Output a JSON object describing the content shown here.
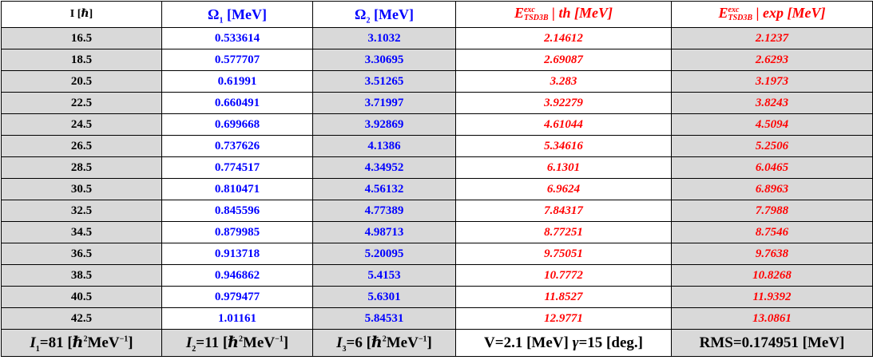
{
  "header": {
    "spin": "I [ℏ]",
    "omega1": {
      "symbol": "Ω",
      "sub": "1",
      "unit": " [MeV]"
    },
    "omega2": {
      "symbol": "Ω",
      "sub": "2",
      "unit": " [MeV]"
    },
    "eth": {
      "symbol": "E",
      "sup": "exc",
      "sub": "TSD3B",
      "rest": " | th [MeV]"
    },
    "eexp": {
      "symbol": "E",
      "sup": "exc",
      "sub": "TSD3B",
      "rest": " | exp [MeV]"
    }
  },
  "rows": [
    {
      "spin": "16.5",
      "omega1": "0.533614",
      "omega2": "3.1032",
      "eth": "2.14612",
      "eexp": "2.1237"
    },
    {
      "spin": "18.5",
      "omega1": "0.577707",
      "omega2": "3.30695",
      "eth": "2.69087",
      "eexp": "2.6293"
    },
    {
      "spin": "20.5",
      "omega1": "0.61991",
      "omega2": "3.51265",
      "eth": "3.283",
      "eexp": "3.1973"
    },
    {
      "spin": "22.5",
      "omega1": "0.660491",
      "omega2": "3.71997",
      "eth": "3.92279",
      "eexp": "3.8243"
    },
    {
      "spin": "24.5",
      "omega1": "0.699668",
      "omega2": "3.92869",
      "eth": "4.61044",
      "eexp": "4.5094"
    },
    {
      "spin": "26.5",
      "omega1": "0.737626",
      "omega2": "4.1386",
      "eth": "5.34616",
      "eexp": "5.2506"
    },
    {
      "spin": "28.5",
      "omega1": "0.774517",
      "omega2": "4.34952",
      "eth": "6.1301",
      "eexp": "6.0465"
    },
    {
      "spin": "30.5",
      "omega1": "0.810471",
      "omega2": "4.56132",
      "eth": "6.9624",
      "eexp": "6.8963"
    },
    {
      "spin": "32.5",
      "omega1": "0.845596",
      "omega2": "4.77389",
      "eth": "7.84317",
      "eexp": "7.7988"
    },
    {
      "spin": "34.5",
      "omega1": "0.879985",
      "omega2": "4.98713",
      "eth": "8.77251",
      "eexp": "8.7546"
    },
    {
      "spin": "36.5",
      "omega1": "0.913718",
      "omega2": "5.20095",
      "eth": "9.75051",
      "eexp": "9.7638"
    },
    {
      "spin": "38.5",
      "omega1": "0.946862",
      "omega2": "5.4153",
      "eth": "10.7772",
      "eexp": "10.8268"
    },
    {
      "spin": "40.5",
      "omega1": "0.979477",
      "omega2": "5.6301",
      "eth": "11.8527",
      "eexp": "11.9392"
    },
    {
      "spin": "42.5",
      "omega1": "1.01161",
      "omega2": "5.84531",
      "eth": "12.9771",
      "eexp": "13.0861"
    }
  ],
  "footer": {
    "i1": {
      "symbol": "I",
      "sub": "1",
      "value": "=81 [ℏ",
      "sup": "2",
      "rest": "MeV",
      "exp": "−1",
      "close": "]"
    },
    "i2": {
      "symbol": "I",
      "sub": "2",
      "value": "=11 [ℏ",
      "sup": "2",
      "rest": "MeV",
      "exp": "−1",
      "close": "]"
    },
    "i3": {
      "symbol": "I",
      "sub": "3",
      "value": "=6 [ℏ",
      "sup": "2",
      "rest": "MeV",
      "exp": "−1",
      "close": "]"
    },
    "params": {
      "v": "V=2.1 [MeV] ",
      "gamma": "γ",
      "gamma_val": "=15 [deg.]"
    },
    "rms": "RMS=0.174951 [MeV]"
  },
  "colors": {
    "grey_fill": "#d9d9d9",
    "blue_text": "#0000ff",
    "red_text": "#ff0000",
    "border": "#000000"
  }
}
